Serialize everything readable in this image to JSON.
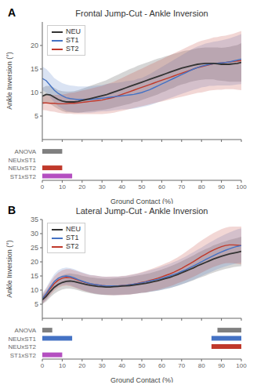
{
  "chart_data": [
    {
      "type": "line",
      "title": "Frontal Jump-Cut - Ankle Inversion",
      "annotations": [
        "A"
      ],
      "ylabel": "Ankle Inversion (°)",
      "x": [
        0,
        2,
        4,
        6,
        8,
        10,
        12,
        14,
        16,
        18,
        20,
        22,
        24,
        26,
        28,
        30,
        32,
        34,
        36,
        38,
        40,
        42,
        44,
        46,
        48,
        50,
        52,
        54,
        56,
        58,
        60,
        62,
        64,
        66,
        68,
        70,
        72,
        74,
        76,
        78,
        80,
        82,
        84,
        86,
        88,
        90,
        92,
        94,
        96,
        98,
        100
      ],
      "xlim": [
        0,
        100
      ],
      "xticks": [
        0,
        10,
        20,
        30,
        40,
        50,
        60,
        70,
        80,
        90,
        100
      ],
      "ylim": [
        0,
        25
      ],
      "yticks": [
        5,
        10,
        15,
        20
      ],
      "tick_labels": "y",
      "legend": "upper left",
      "grid": false,
      "series": [
        {
          "name": "NEU",
          "color": "#333333",
          "values": [
            9.2,
            9.6,
            9.5,
            9.0,
            8.5,
            8.2,
            8.0,
            8.0,
            8.0,
            8.1,
            8.3,
            8.5,
            8.7,
            8.9,
            9.1,
            9.3,
            9.5,
            9.8,
            10.1,
            10.4,
            10.7,
            11.0,
            11.3,
            11.6,
            11.9,
            12.2,
            12.5,
            12.8,
            13.1,
            13.4,
            13.7,
            14.0,
            14.3,
            14.6,
            14.9,
            15.2,
            15.4,
            15.6,
            15.8,
            16.0,
            16.1,
            16.2,
            16.2,
            16.2,
            16.1,
            16.0,
            16.0,
            16.0,
            16.1,
            16.2,
            16.4
          ],
          "sd": [
            1.8,
            1.8,
            1.9,
            2.0,
            2.0,
            2.1,
            2.2,
            2.2,
            2.3,
            2.4,
            2.5,
            2.6,
            2.7,
            2.8,
            2.9,
            3.0,
            3.1,
            3.2,
            3.3,
            3.4,
            3.5,
            3.6,
            3.7,
            3.7,
            3.8,
            3.8,
            3.8,
            3.8,
            3.8,
            3.8,
            3.7,
            3.7,
            3.6,
            3.6,
            3.5,
            3.5,
            3.5,
            3.4,
            3.4,
            3.4,
            3.4,
            3.4,
            3.4,
            3.4,
            3.5,
            3.5,
            3.6,
            3.7,
            3.8,
            3.9,
            4.1
          ]
        },
        {
          "name": "ST1",
          "color": "#4472c4",
          "values": [
            13.0,
            12.5,
            11.5,
            10.5,
            9.8,
            9.3,
            8.9,
            8.7,
            8.6,
            8.5,
            8.5,
            8.5,
            8.5,
            8.6,
            8.7,
            8.8,
            8.9,
            9.0,
            9.1,
            9.2,
            9.3,
            9.4,
            9.5,
            9.6,
            9.8,
            10.0,
            10.3,
            10.6,
            11.0,
            11.4,
            11.8,
            12.2,
            12.6,
            13.0,
            13.4,
            13.8,
            14.2,
            14.6,
            15.0,
            15.3,
            15.6,
            15.8,
            16.0,
            16.1,
            16.2,
            16.3,
            16.4,
            16.5,
            16.7,
            16.9,
            17.1
          ],
          "sd": [
            2.5,
            2.5,
            2.6,
            2.6,
            2.7,
            2.7,
            2.8,
            2.8,
            2.8,
            2.8,
            2.8,
            2.8,
            2.8,
            2.8,
            2.8,
            2.8,
            2.9,
            2.9,
            2.9,
            2.9,
            2.9,
            3.0,
            3.0,
            3.0,
            3.1,
            3.1,
            3.2,
            3.3,
            3.4,
            3.5,
            3.6,
            3.7,
            3.8,
            3.9,
            4.0,
            4.1,
            4.2,
            4.3,
            4.4,
            4.5,
            4.5,
            4.6,
            4.6,
            4.7,
            4.7,
            4.8,
            4.9,
            5.0,
            5.1,
            5.2,
            5.3
          ]
        },
        {
          "name": "ST2",
          "color": "#c0392b",
          "values": [
            7.8,
            7.8,
            7.7,
            7.7,
            7.6,
            7.6,
            7.6,
            7.7,
            7.7,
            7.8,
            7.9,
            8.0,
            8.1,
            8.2,
            8.3,
            8.4,
            8.6,
            8.8,
            9.0,
            9.3,
            9.6,
            9.9,
            10.2,
            10.5,
            10.8,
            11.1,
            11.4,
            11.7,
            12.0,
            12.3,
            12.6,
            12.9,
            13.2,
            13.5,
            13.8,
            14.1,
            14.4,
            14.7,
            15.0,
            15.3,
            15.5,
            15.7,
            15.9,
            16.1,
            16.2,
            16.3,
            16.4,
            16.5,
            16.6,
            16.7,
            16.8
          ],
          "sd": [
            1.5,
            1.6,
            1.7,
            1.8,
            1.9,
            2.0,
            2.1,
            2.2,
            2.3,
            2.4,
            2.5,
            2.6,
            2.7,
            2.8,
            2.9,
            3.0,
            3.1,
            3.2,
            3.3,
            3.4,
            3.5,
            3.6,
            3.7,
            3.8,
            3.9,
            4.0,
            4.1,
            4.2,
            4.3,
            4.4,
            4.5,
            4.6,
            4.7,
            4.8,
            4.9,
            5.0,
            5.1,
            5.2,
            5.3,
            5.4,
            5.5,
            5.5,
            5.5,
            5.6,
            5.6,
            5.7,
            5.7,
            5.8,
            5.9,
            6.1,
            6.3
          ]
        }
      ]
    },
    {
      "type": "bar",
      "orientation": "horizontal",
      "categories": [
        "ANOVA",
        "NEUxST1",
        "NEUxST2",
        "ST1xST2"
      ],
      "colors": [
        "#808080",
        "#4472c4",
        "#c0392b",
        "#b44fc0"
      ],
      "ranges": [
        [
          [
            0,
            10
          ]
        ],
        [],
        [
          [
            0,
            10
          ]
        ],
        [
          [
            0,
            15
          ]
        ]
      ],
      "xlim": [
        0,
        100
      ],
      "xticks": [
        0,
        10,
        20,
        30,
        40,
        50,
        60,
        70,
        80,
        90,
        100
      ],
      "xlabel": "Ground Contact (%)"
    },
    {
      "type": "line",
      "title": "Lateral Jump-Cut - Ankle Inversion",
      "annotations": [
        "B"
      ],
      "ylabel": "Ankle Inversion (°)",
      "x": [
        0,
        2,
        4,
        6,
        8,
        10,
        12,
        14,
        16,
        18,
        20,
        22,
        24,
        26,
        28,
        30,
        32,
        34,
        36,
        38,
        40,
        42,
        44,
        46,
        48,
        50,
        52,
        54,
        56,
        58,
        60,
        62,
        64,
        66,
        68,
        70,
        72,
        74,
        76,
        78,
        80,
        82,
        84,
        86,
        88,
        90,
        92,
        94,
        96,
        98,
        100
      ],
      "xlim": [
        0,
        100
      ],
      "xticks": [
        0,
        10,
        20,
        30,
        40,
        50,
        60,
        70,
        80,
        90,
        100
      ],
      "ylim": [
        0,
        35
      ],
      "yticks": [
        5,
        10,
        15,
        20,
        25,
        30,
        35
      ],
      "tick_labels": "y",
      "legend": "upper left",
      "grid": false,
      "series": [
        {
          "name": "NEU",
          "color": "#333333",
          "values": [
            6.5,
            7.8,
            9.5,
            11.0,
            12.0,
            12.7,
            13.1,
            13.2,
            13.0,
            12.7,
            12.3,
            12.0,
            11.7,
            11.5,
            11.3,
            11.2,
            11.1,
            11.1,
            11.2,
            11.3,
            11.4,
            11.5,
            11.6,
            11.8,
            12.0,
            12.2,
            12.4,
            12.7,
            13.0,
            13.3,
            13.7,
            14.1,
            14.5,
            15.0,
            15.5,
            16.1,
            16.7,
            17.3,
            17.9,
            18.6,
            19.2,
            19.8,
            20.4,
            21.0,
            21.5,
            22.0,
            22.4,
            22.8,
            23.1,
            23.4,
            23.7
          ],
          "sd": [
            1.5,
            1.8,
            2.1,
            2.3,
            2.4,
            2.5,
            2.6,
            2.7,
            2.7,
            2.8,
            2.8,
            2.8,
            2.8,
            2.9,
            2.9,
            2.9,
            2.9,
            2.9,
            3.0,
            3.0,
            3.0,
            3.0,
            3.1,
            3.1,
            3.2,
            3.2,
            3.3,
            3.3,
            3.4,
            3.5,
            3.6,
            3.7,
            3.8,
            3.9,
            4.0,
            4.1,
            4.2,
            4.3,
            4.4,
            4.5,
            4.6,
            4.7,
            4.7,
            4.8,
            4.8,
            4.9,
            4.9,
            5.0,
            5.0,
            5.1,
            5.2
          ]
        },
        {
          "name": "ST1",
          "color": "#4472c4",
          "values": [
            7.0,
            8.8,
            11.0,
            13.0,
            14.2,
            14.8,
            15.0,
            14.8,
            14.3,
            13.7,
            13.2,
            12.7,
            12.3,
            12.0,
            11.8,
            11.6,
            11.5,
            11.5,
            11.5,
            11.5,
            11.6,
            11.7,
            11.9,
            12.1,
            12.3,
            12.6,
            12.9,
            13.2,
            13.5,
            13.8,
            14.2,
            14.6,
            15.0,
            15.5,
            16.0,
            16.6,
            17.2,
            17.9,
            18.6,
            19.3,
            20.0,
            20.8,
            21.5,
            22.2,
            22.9,
            23.5,
            24.1,
            24.6,
            25.1,
            25.5,
            25.8
          ],
          "sd": [
            1.8,
            2.1,
            2.4,
            2.6,
            2.8,
            2.9,
            3.0,
            3.0,
            3.1,
            3.1,
            3.1,
            3.1,
            3.1,
            3.2,
            3.2,
            3.2,
            3.2,
            3.2,
            3.3,
            3.3,
            3.3,
            3.4,
            3.4,
            3.5,
            3.5,
            3.6,
            3.7,
            3.8,
            3.9,
            4.0,
            4.1,
            4.2,
            4.3,
            4.4,
            4.5,
            4.6,
            4.7,
            4.8,
            4.9,
            5.0,
            5.1,
            5.2,
            5.3,
            5.4,
            5.5,
            5.6,
            5.7,
            5.8,
            5.9,
            6.0,
            6.1
          ]
        },
        {
          "name": "ST2",
          "color": "#c0392b",
          "values": [
            6.8,
            8.5,
            10.5,
            12.3,
            13.5,
            14.2,
            14.5,
            14.4,
            14.0,
            13.5,
            13.0,
            12.6,
            12.2,
            12.0,
            11.8,
            11.6,
            11.5,
            11.5,
            11.5,
            11.5,
            11.6,
            11.7,
            11.9,
            12.1,
            12.4,
            12.7,
            13.0,
            13.4,
            13.8,
            14.2,
            14.7,
            15.2,
            15.7,
            16.3,
            17.0,
            17.7,
            18.5,
            19.3,
            20.1,
            21.0,
            21.9,
            22.7,
            23.5,
            24.2,
            24.8,
            25.4,
            25.8,
            26.0,
            26.0,
            25.9,
            25.8
          ],
          "sd": [
            1.7,
            2.0,
            2.3,
            2.5,
            2.7,
            2.8,
            2.9,
            3.0,
            3.0,
            3.1,
            3.1,
            3.1,
            3.1,
            3.2,
            3.2,
            3.2,
            3.2,
            3.3,
            3.3,
            3.3,
            3.4,
            3.4,
            3.5,
            3.5,
            3.6,
            3.7,
            3.8,
            3.9,
            4.0,
            4.1,
            4.2,
            4.3,
            4.4,
            4.5,
            4.6,
            4.8,
            5.0,
            5.2,
            5.4,
            5.6,
            5.7,
            5.8,
            5.9,
            6.0,
            6.1,
            6.2,
            6.3,
            6.4,
            6.5,
            6.6,
            6.7
          ]
        }
      ]
    },
    {
      "type": "bar",
      "orientation": "horizontal",
      "categories": [
        "ANOVA",
        "NEUxST1",
        "NEUxST2",
        "ST1xST2"
      ],
      "colors": [
        "#808080",
        "#4472c4",
        "#c0392b",
        "#b44fc0"
      ],
      "ranges": [
        [
          [
            0,
            5
          ],
          [
            88,
            100
          ]
        ],
        [
          [
            0,
            15
          ],
          [
            85,
            100
          ]
        ],
        [
          [
            85,
            100
          ]
        ],
        [
          [
            0,
            10
          ]
        ]
      ],
      "xlim": [
        0,
        100
      ],
      "xticks": [
        0,
        10,
        20,
        30,
        40,
        50,
        60,
        70,
        80,
        90,
        100
      ],
      "xlabel": "Ground Contact (%)"
    }
  ]
}
